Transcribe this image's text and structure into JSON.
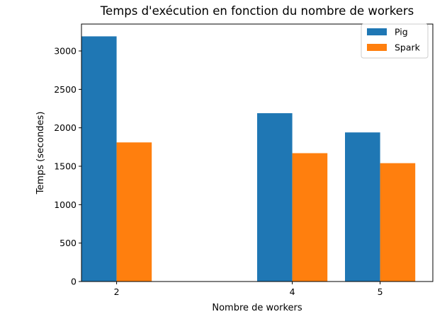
{
  "chart_data": {
    "type": "bar",
    "title": "Temps d'exécution en fonction du nombre de workers",
    "xlabel": "Nombre de workers",
    "ylabel": "Temps (secondes)",
    "x": [
      2,
      4,
      5
    ],
    "x_ticks": [
      "2",
      "4",
      "5"
    ],
    "xlim": [
      1.6,
      5.6
    ],
    "ylim": [
      0,
      3350
    ],
    "y_ticks": [
      0,
      500,
      1000,
      1500,
      2000,
      2500,
      3000
    ],
    "grid": false,
    "legend_position": "top-right",
    "bar_width": 0.4,
    "series": [
      {
        "name": "Pig",
        "color": "#1f77b4",
        "values": [
          3190,
          2190,
          1940
        ]
      },
      {
        "name": "Spark",
        "color": "#ff7f0e",
        "values": [
          1810,
          1670,
          1540
        ]
      }
    ]
  }
}
